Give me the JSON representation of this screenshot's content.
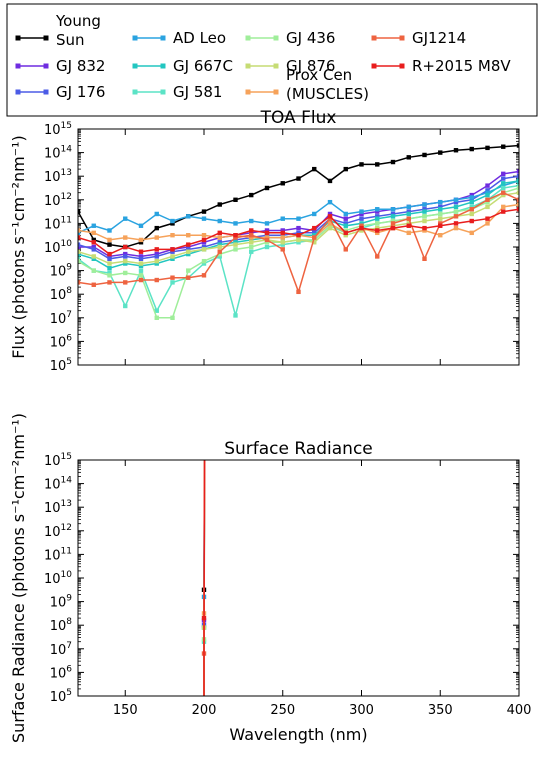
{
  "chart_data": [
    {
      "type": "line",
      "title": "TOA Flux",
      "ylabel": "Flux (photons s⁻¹cm⁻²nm⁻¹)",
      "xlabel": "",
      "xlim": [
        120,
        400
      ],
      "ylim_log10": [
        5,
        15
      ],
      "yscale": "log",
      "x_ticks": [
        150,
        200,
        250,
        300,
        350,
        400
      ],
      "y_tick_exponents": [
        5,
        6,
        7,
        8,
        9,
        10,
        11,
        12,
        13,
        14,
        15
      ],
      "y_tick_base": "10",
      "show_x_tick_labels": false
    },
    {
      "type": "line",
      "title": "Surface Radiance",
      "ylabel": "Surface Radiance (photons s⁻¹cm⁻²nm⁻¹)",
      "xlabel": "Wavelength (nm)",
      "xlim": [
        120,
        400
      ],
      "ylim_log10": [
        5,
        15
      ],
      "yscale": "log",
      "x_ticks": [
        150,
        200,
        250,
        300,
        350,
        400
      ],
      "y_tick_exponents": [
        5,
        6,
        7,
        8,
        9,
        10,
        11,
        12,
        13,
        14,
        15
      ],
      "y_tick_base": "10",
      "show_x_tick_labels": true,
      "cutoff_nm": 200
    }
  ],
  "series": [
    {
      "name": "Young Sun",
      "color": "#000000",
      "toa": [
        [
          120,
          11.5
        ],
        [
          130,
          10.3
        ],
        [
          140,
          10.1
        ],
        [
          150,
          10.0
        ],
        [
          160,
          10.2
        ],
        [
          170,
          10.8
        ],
        [
          180,
          11.0
        ],
        [
          190,
          11.3
        ],
        [
          200,
          11.5
        ],
        [
          210,
          11.8
        ],
        [
          220,
          12.0
        ],
        [
          230,
          12.2
        ],
        [
          240,
          12.5
        ],
        [
          250,
          12.7
        ],
        [
          260,
          12.9
        ],
        [
          270,
          13.3
        ],
        [
          280,
          12.8
        ],
        [
          290,
          13.3
        ],
        [
          300,
          13.5
        ],
        [
          310,
          13.5
        ],
        [
          320,
          13.6
        ],
        [
          330,
          13.8
        ],
        [
          340,
          13.9
        ],
        [
          350,
          14.0
        ],
        [
          360,
          14.1
        ],
        [
          370,
          14.15
        ],
        [
          380,
          14.2
        ],
        [
          390,
          14.25
        ],
        [
          400,
          14.3
        ]
      ]
    },
    {
      "name": "GJ 832",
      "color": "#6f2ce0",
      "toa": [
        [
          120,
          10.0
        ],
        [
          130,
          10.0
        ],
        [
          140,
          9.6
        ],
        [
          150,
          9.7
        ],
        [
          160,
          9.6
        ],
        [
          170,
          9.7
        ],
        [
          180,
          9.9
        ],
        [
          190,
          10.0
        ],
        [
          200,
          10.2
        ],
        [
          210,
          10.4
        ],
        [
          220,
          10.5
        ],
        [
          230,
          10.6
        ],
        [
          240,
          10.7
        ],
        [
          250,
          10.7
        ],
        [
          260,
          10.8
        ],
        [
          270,
          10.7
        ],
        [
          280,
          11.4
        ],
        [
          290,
          11.2
        ],
        [
          300,
          11.4
        ],
        [
          310,
          11.5
        ],
        [
          320,
          11.6
        ],
        [
          330,
          11.7
        ],
        [
          340,
          11.8
        ],
        [
          350,
          11.9
        ],
        [
          360,
          12.0
        ],
        [
          370,
          12.2
        ],
        [
          380,
          12.6
        ],
        [
          390,
          13.1
        ],
        [
          400,
          13.2
        ]
      ]
    },
    {
      "name": "GJ 176",
      "color": "#4b5be6",
      "toa": [
        [
          120,
          10.1
        ],
        [
          130,
          9.9
        ],
        [
          140,
          9.5
        ],
        [
          150,
          9.6
        ],
        [
          160,
          9.5
        ],
        [
          170,
          9.6
        ],
        [
          180,
          9.8
        ],
        [
          190,
          9.9
        ],
        [
          200,
          10.0
        ],
        [
          210,
          10.2
        ],
        [
          220,
          10.3
        ],
        [
          230,
          10.4
        ],
        [
          240,
          10.5
        ],
        [
          250,
          10.5
        ],
        [
          260,
          10.6
        ],
        [
          270,
          10.6
        ],
        [
          280,
          11.2
        ],
        [
          290,
          11.0
        ],
        [
          300,
          11.2
        ],
        [
          310,
          11.3
        ],
        [
          320,
          11.4
        ],
        [
          330,
          11.5
        ],
        [
          340,
          11.6
        ],
        [
          350,
          11.7
        ],
        [
          360,
          11.9
        ],
        [
          370,
          12.0
        ],
        [
          380,
          12.4
        ],
        [
          390,
          12.9
        ],
        [
          400,
          13.0
        ]
      ]
    },
    {
      "name": "AD Leo",
      "color": "#2aa3e0",
      "toa": [
        [
          120,
          10.6
        ],
        [
          130,
          10.9
        ],
        [
          140,
          10.7
        ],
        [
          150,
          11.2
        ],
        [
          160,
          10.9
        ],
        [
          170,
          11.4
        ],
        [
          180,
          11.1
        ],
        [
          190,
          11.3
        ],
        [
          200,
          11.2
        ],
        [
          210,
          11.1
        ],
        [
          220,
          11.0
        ],
        [
          230,
          11.1
        ],
        [
          240,
          11.0
        ],
        [
          250,
          11.2
        ],
        [
          260,
          11.2
        ],
        [
          270,
          11.4
        ],
        [
          280,
          11.9
        ],
        [
          290,
          11.4
        ],
        [
          300,
          11.5
        ],
        [
          310,
          11.6
        ],
        [
          320,
          11.6
        ],
        [
          330,
          11.7
        ],
        [
          340,
          11.8
        ],
        [
          350,
          11.9
        ],
        [
          360,
          12.0
        ],
        [
          370,
          12.1
        ],
        [
          380,
          12.3
        ],
        [
          390,
          12.6
        ],
        [
          400,
          12.8
        ]
      ]
    },
    {
      "name": "GJ 667C",
      "color": "#22c6c0",
      "toa": [
        [
          120,
          9.7
        ],
        [
          130,
          9.5
        ],
        [
          140,
          9.1
        ],
        [
          150,
          9.3
        ],
        [
          160,
          9.2
        ],
        [
          170,
          9.3
        ],
        [
          180,
          9.5
        ],
        [
          190,
          9.7
        ],
        [
          200,
          9.9
        ],
        [
          210,
          10.1
        ],
        [
          220,
          10.2
        ],
        [
          230,
          10.3
        ],
        [
          240,
          10.4
        ],
        [
          250,
          10.4
        ],
        [
          260,
          10.5
        ],
        [
          270,
          10.5
        ],
        [
          280,
          11.1
        ],
        [
          290,
          10.9
        ],
        [
          300,
          11.0
        ],
        [
          310,
          11.2
        ],
        [
          320,
          11.3
        ],
        [
          330,
          11.4
        ],
        [
          340,
          11.5
        ],
        [
          350,
          11.6
        ],
        [
          360,
          11.7
        ],
        [
          370,
          11.9
        ],
        [
          380,
          12.2
        ],
        [
          390,
          12.7
        ],
        [
          400,
          12.8
        ]
      ]
    },
    {
      "name": "GJ 581",
      "color": "#5be3c6",
      "toa": [
        [
          120,
          9.5
        ],
        [
          130,
          9.0
        ],
        [
          140,
          8.9
        ],
        [
          150,
          7.5
        ],
        [
          160,
          9.0
        ],
        [
          170,
          7.3
        ],
        [
          180,
          8.5
        ],
        [
          190,
          8.7
        ],
        [
          200,
          9.3
        ],
        [
          210,
          9.6
        ],
        [
          220,
          7.1
        ],
        [
          230,
          9.8
        ],
        [
          240,
          10.0
        ],
        [
          250,
          10.1
        ],
        [
          260,
          10.2
        ],
        [
          270,
          10.3
        ],
        [
          280,
          10.9
        ],
        [
          290,
          10.6
        ],
        [
          300,
          10.8
        ],
        [
          310,
          11.0
        ],
        [
          320,
          11.1
        ],
        [
          330,
          11.2
        ],
        [
          340,
          11.3
        ],
        [
          350,
          11.4
        ],
        [
          360,
          11.5
        ],
        [
          370,
          11.7
        ],
        [
          380,
          12.0
        ],
        [
          390,
          12.5
        ],
        [
          400,
          12.6
        ]
      ]
    },
    {
      "name": "GJ 436",
      "color": "#9fee9a",
      "toa": [
        [
          120,
          9.4
        ],
        [
          130,
          9.0
        ],
        [
          140,
          8.8
        ],
        [
          150,
          8.9
        ],
        [
          160,
          8.8
        ],
        [
          170,
          7.0
        ],
        [
          180,
          7.0
        ],
        [
          190,
          9.0
        ],
        [
          200,
          9.4
        ],
        [
          210,
          9.7
        ],
        [
          220,
          9.9
        ],
        [
          230,
          10.0
        ],
        [
          240,
          10.2
        ],
        [
          250,
          10.2
        ],
        [
          260,
          10.3
        ],
        [
          270,
          10.3
        ],
        [
          280,
          10.9
        ],
        [
          290,
          10.7
        ],
        [
          300,
          10.9
        ],
        [
          310,
          11.0
        ],
        [
          320,
          11.1
        ],
        [
          330,
          11.2
        ],
        [
          340,
          11.3
        ],
        [
          350,
          11.4
        ],
        [
          360,
          11.5
        ],
        [
          370,
          11.6
        ],
        [
          380,
          11.9
        ],
        [
          390,
          12.3
        ],
        [
          400,
          12.5
        ]
      ]
    },
    {
      "name": "GJ 876",
      "color": "#c6dc74",
      "toa": [
        [
          120,
          9.8
        ],
        [
          130,
          9.6
        ],
        [
          140,
          9.3
        ],
        [
          150,
          9.4
        ],
        [
          160,
          9.3
        ],
        [
          170,
          9.4
        ],
        [
          180,
          9.6
        ],
        [
          190,
          9.8
        ],
        [
          200,
          9.9
        ],
        [
          210,
          10.0
        ],
        [
          220,
          10.1
        ],
        [
          230,
          10.2
        ],
        [
          240,
          10.3
        ],
        [
          250,
          10.2
        ],
        [
          260,
          10.3
        ],
        [
          270,
          10.2
        ],
        [
          280,
          10.8
        ],
        [
          290,
          10.5
        ],
        [
          300,
          10.7
        ],
        [
          310,
          10.8
        ],
        [
          320,
          10.9
        ],
        [
          330,
          11.0
        ],
        [
          340,
          11.1
        ],
        [
          350,
          11.2
        ],
        [
          360,
          11.3
        ],
        [
          370,
          11.4
        ],
        [
          380,
          11.7
        ],
        [
          390,
          12.2
        ],
        [
          400,
          12.3
        ]
      ]
    },
    {
      "name": "Prox Cen\n(MUSCLES)",
      "color": "#f6a25a",
      "toa": [
        [
          120,
          10.7
        ],
        [
          130,
          10.6
        ],
        [
          140,
          10.3
        ],
        [
          150,
          10.4
        ],
        [
          160,
          10.3
        ],
        [
          170,
          10.4
        ],
        [
          180,
          10.5
        ],
        [
          190,
          10.5
        ],
        [
          200,
          10.5
        ],
        [
          210,
          10.4
        ],
        [
          220,
          10.5
        ],
        [
          230,
          10.4
        ],
        [
          240,
          10.4
        ],
        [
          250,
          10.4
        ],
        [
          260,
          10.5
        ],
        [
          270,
          10.4
        ],
        [
          280,
          11.0
        ],
        [
          290,
          10.6
        ],
        [
          300,
          10.8
        ],
        [
          310,
          10.6
        ],
        [
          320,
          10.8
        ],
        [
          330,
          10.6
        ],
        [
          340,
          10.7
        ],
        [
          350,
          10.5
        ],
        [
          360,
          10.8
        ],
        [
          370,
          10.6
        ],
        [
          380,
          11.0
        ],
        [
          390,
          11.7
        ],
        [
          400,
          11.8
        ]
      ]
    },
    {
      "name": "GJ1214",
      "color": "#ee6340",
      "toa": [
        [
          120,
          8.5
        ],
        [
          130,
          8.4
        ],
        [
          140,
          8.5
        ],
        [
          150,
          8.5
        ],
        [
          160,
          8.6
        ],
        [
          170,
          8.6
        ],
        [
          180,
          8.7
        ],
        [
          190,
          8.7
        ],
        [
          200,
          8.8
        ],
        [
          210,
          9.8
        ],
        [
          220,
          10.4
        ],
        [
          230,
          10.5
        ],
        [
          240,
          10.3
        ],
        [
          250,
          9.9
        ],
        [
          260,
          8.1
        ],
        [
          270,
          10.4
        ],
        [
          280,
          11.2
        ],
        [
          290,
          9.9
        ],
        [
          300,
          10.9
        ],
        [
          310,
          9.6
        ],
        [
          320,
          11.0
        ],
        [
          330,
          11.2
        ],
        [
          340,
          9.5
        ],
        [
          350,
          11.0
        ],
        [
          360,
          11.3
        ],
        [
          370,
          11.6
        ],
        [
          380,
          12.0
        ],
        [
          390,
          12.3
        ],
        [
          400,
          12.0
        ]
      ]
    },
    {
      "name": "R+2015 M8V",
      "color": "#e81d1d",
      "toa": [
        [
          120,
          10.4
        ],
        [
          130,
          10.2
        ],
        [
          140,
          9.7
        ],
        [
          150,
          10.0
        ],
        [
          160,
          9.8
        ],
        [
          170,
          9.9
        ],
        [
          180,
          9.9
        ],
        [
          190,
          10.1
        ],
        [
          200,
          10.3
        ],
        [
          210,
          10.6
        ],
        [
          220,
          10.5
        ],
        [
          230,
          10.7
        ],
        [
          240,
          10.6
        ],
        [
          250,
          10.6
        ],
        [
          260,
          10.5
        ],
        [
          270,
          10.8
        ],
        [
          280,
          11.3
        ],
        [
          290,
          10.6
        ],
        [
          300,
          10.8
        ],
        [
          310,
          10.7
        ],
        [
          320,
          10.8
        ],
        [
          330,
          10.9
        ],
        [
          340,
          10.8
        ],
        [
          350,
          10.9
        ],
        [
          360,
          11.0
        ],
        [
          370,
          11.1
        ],
        [
          380,
          11.2
        ],
        [
          390,
          11.5
        ],
        [
          400,
          11.6
        ]
      ]
    }
  ]
}
